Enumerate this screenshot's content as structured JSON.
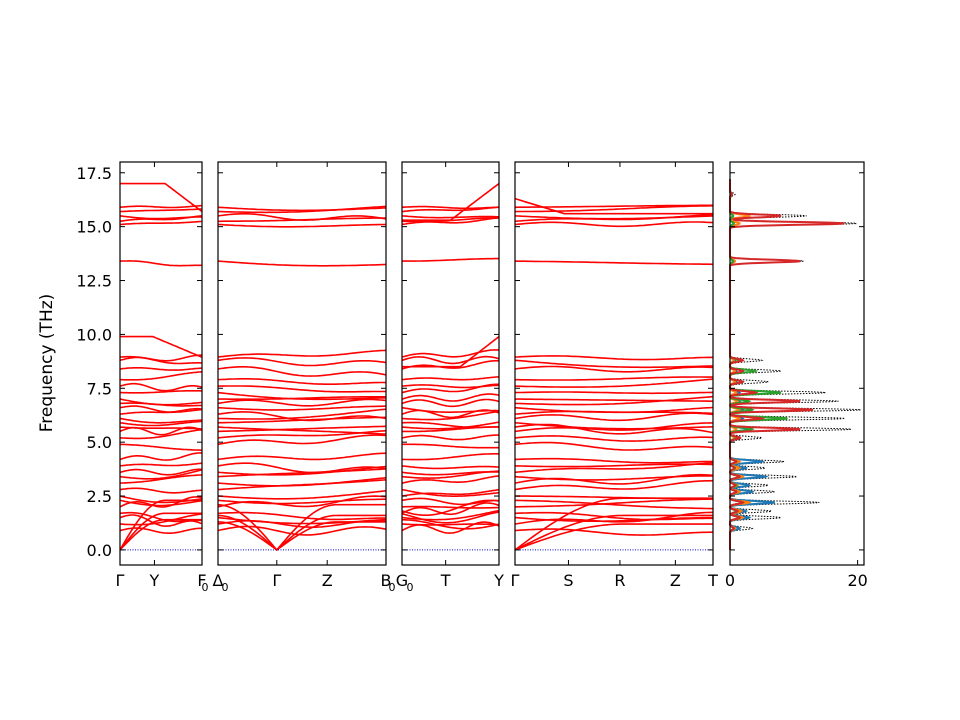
{
  "chart_data": {
    "type": "line",
    "ylabel": "Frequency (THz)",
    "ylim": [
      -0.7,
      18.0
    ],
    "yticks": [
      0.0,
      2.5,
      5.0,
      7.5,
      10.0,
      12.5,
      15.0,
      17.5
    ],
    "ytick_labels": [
      "0.0",
      "2.5",
      "5.0",
      "7.5",
      "10.0",
      "12.5",
      "15.0",
      "17.5"
    ],
    "band_color": "#ff0000",
    "zero_line_color": "#0000cc",
    "panels": [
      {
        "name": "panel-1",
        "ticks": [
          {
            "pos": 0.0,
            "label": "Γ"
          },
          {
            "pos": 0.42,
            "label": "Y"
          },
          {
            "pos": 1.0,
            "label": "F"
          }
        ],
        "bands": [
          {
            "start": [
              0.0,
              0.0
            ],
            "end": [
              0.0,
              0.0
            ]
          },
          {
            "start": [
              0.0,
              0.0
            ],
            "end": [
              0.0,
              0.0
            ]
          },
          {
            "start": [
              0.0,
              0.0
            ],
            "end": [
              0.0,
              0.0
            ]
          },
          {
            "start": [
              0.0,
              0.0
            ],
            "end": [
              0.0,
              0.0
            ]
          }
        ]
      },
      {
        "name": "panel-2",
        "ticks": [
          {
            "pos": 0.0,
            "label": "Δ"
          },
          {
            "pos": 0.35,
            "label": "Γ"
          },
          {
            "pos": 0.65,
            "label": "Z"
          },
          {
            "pos": 1.0,
            "label": "B"
          }
        ]
      },
      {
        "name": "panel-3",
        "ticks": [
          {
            "pos": 0.0,
            "label": "G"
          },
          {
            "pos": 0.45,
            "label": "T"
          },
          {
            "pos": 1.0,
            "label": "Y"
          }
        ]
      },
      {
        "name": "panel-4",
        "ticks": [
          {
            "pos": 0.0,
            "label": "Γ"
          },
          {
            "pos": 0.27,
            "label": "S"
          },
          {
            "pos": 0.53,
            "label": "R"
          },
          {
            "pos": 0.81,
            "label": "Z"
          },
          {
            "pos": 1.0,
            "label": "T"
          }
        ]
      }
    ],
    "subscript_labels": [
      "0",
      "0",
      "0",
      "0"
    ],
    "dos": {
      "xlim": [
        0,
        21
      ],
      "xticks": [
        0,
        20
      ],
      "xtick_labels": [
        "0",
        "20"
      ],
      "total_color": "#000000",
      "series": [
        {
          "color": "#1f77b4"
        },
        {
          "color": "#ff7f0e"
        },
        {
          "color": "#2ca02c"
        },
        {
          "color": "#d62728"
        }
      ],
      "peaks": [
        {
          "f": 1.0,
          "total": 3.5,
          "p": [
            1.5,
            0.8,
            0.6,
            0.6
          ]
        },
        {
          "f": 1.5,
          "total": 8.0,
          "p": [
            3.0,
            2.0,
            1.5,
            1.5
          ]
        },
        {
          "f": 1.8,
          "total": 6.5,
          "p": [
            2.5,
            1.8,
            1.0,
            1.2
          ]
        },
        {
          "f": 2.2,
          "total": 14.0,
          "p": [
            7.0,
            3.0,
            2.0,
            2.0
          ]
        },
        {
          "f": 2.7,
          "total": 7.0,
          "p": [
            3.5,
            1.5,
            1.0,
            1.0
          ]
        },
        {
          "f": 3.0,
          "total": 6.0,
          "p": [
            3.0,
            1.2,
            1.0,
            0.8
          ]
        },
        {
          "f": 3.4,
          "total": 10.5,
          "p": [
            5.5,
            2.0,
            1.5,
            1.5
          ]
        },
        {
          "f": 3.8,
          "total": 5.5,
          "p": [
            2.5,
            1.5,
            0.8,
            0.7
          ]
        },
        {
          "f": 4.1,
          "total": 8.5,
          "p": [
            5.0,
            1.5,
            1.0,
            1.0
          ]
        },
        {
          "f": 5.2,
          "total": 5.0,
          "p": [
            1.5,
            0.7,
            1.2,
            1.6
          ]
        },
        {
          "f": 5.6,
          "total": 19.0,
          "p": [
            3.0,
            1.0,
            3.5,
            11.0
          ]
        },
        {
          "f": 6.1,
          "total": 18.0,
          "p": [
            2.0,
            1.5,
            9.0,
            5.0
          ]
        },
        {
          "f": 6.5,
          "total": 20.5,
          "p": [
            2.0,
            1.5,
            3.5,
            13.0
          ]
        },
        {
          "f": 6.9,
          "total": 17.0,
          "p": [
            1.5,
            1.2,
            3.0,
            11.0
          ]
        },
        {
          "f": 7.3,
          "total": 15.0,
          "p": [
            1.5,
            1.0,
            8.0,
            4.0
          ]
        },
        {
          "f": 7.8,
          "total": 6.0,
          "p": [
            1.0,
            0.8,
            2.0,
            2.0
          ]
        },
        {
          "f": 8.3,
          "total": 8.0,
          "p": [
            1.0,
            0.8,
            4.0,
            2.0
          ]
        },
        {
          "f": 8.8,
          "total": 5.0,
          "p": [
            0.8,
            0.6,
            1.5,
            2.0
          ]
        },
        {
          "f": 13.4,
          "total": 11.5,
          "p": [
            0.5,
            0.8,
            0.5,
            11.0
          ]
        },
        {
          "f": 15.15,
          "total": 20.0,
          "p": [
            0.6,
            1.5,
            0.6,
            18.0
          ]
        },
        {
          "f": 15.5,
          "total": 12.0,
          "p": [
            0.5,
            3.0,
            0.5,
            8.0
          ]
        },
        {
          "f": 16.5,
          "total": 0.8,
          "p": [
            0.1,
            0.3,
            0.1,
            0.3
          ]
        }
      ]
    }
  }
}
